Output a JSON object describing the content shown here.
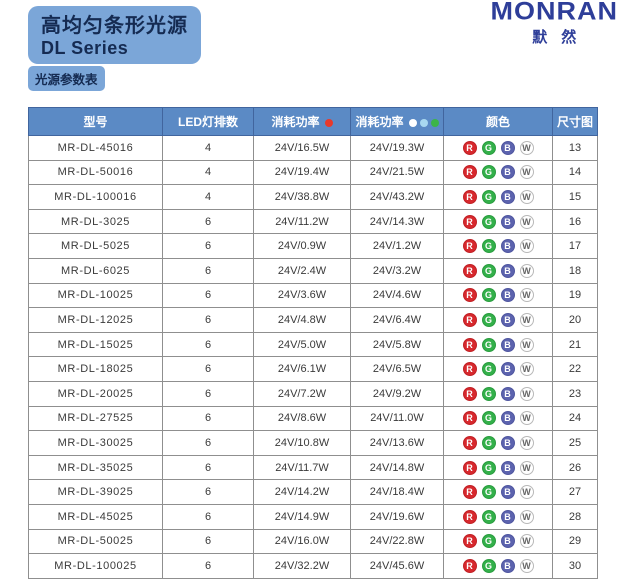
{
  "page": {
    "title_line1": "高均匀条形光源",
    "title_line2": "DL Series",
    "tag": "光源参数表",
    "logo_text": "MONRAN",
    "logo_sub": "默然"
  },
  "colors": {
    "accent_blue": "#7ba6d8",
    "header_blue": "#5b8ac5",
    "logo_navy": "#2e3e99",
    "title_text": "#152b52"
  },
  "table": {
    "columns": [
      {
        "label": "型号"
      },
      {
        "label": "LED灯排数"
      },
      {
        "label": "消耗功率",
        "dots": [
          "#e8392b"
        ]
      },
      {
        "label": "消耗功率",
        "dots": [
          "#ffffff",
          "#a8d8f0",
          "#3cb549"
        ]
      },
      {
        "label": "颜色"
      },
      {
        "label": "尺寸图"
      }
    ],
    "color_chips": {
      "R": {
        "bg": "#d7282d",
        "fg": "#ffffff",
        "border": "#c02025"
      },
      "G": {
        "bg": "#33b04a",
        "fg": "#ffffff",
        "border": "#2a9c3f"
      },
      "B": {
        "bg": "#5c63ae",
        "fg": "#ffffff",
        "border": "#4f56a0"
      },
      "W": {
        "bg": "#ffffff",
        "fg": "#666666",
        "border": "#b8b8b8"
      }
    },
    "rows": [
      {
        "model": "MR-DL-45016",
        "led_rows": "4",
        "power_typ": "24V/16.5W",
        "power_max": "24V/19.3W",
        "colors": [
          "R",
          "G",
          "B",
          "W"
        ],
        "diagram": "13"
      },
      {
        "model": "MR-DL-50016",
        "led_rows": "4",
        "power_typ": "24V/19.4W",
        "power_max": "24V/21.5W",
        "colors": [
          "R",
          "G",
          "B",
          "W"
        ],
        "diagram": "14"
      },
      {
        "model": "MR-DL-100016",
        "led_rows": "4",
        "power_typ": "24V/38.8W",
        "power_max": "24V/43.2W",
        "colors": [
          "R",
          "G",
          "B",
          "W"
        ],
        "diagram": "15"
      },
      {
        "model": "MR-DL-3025",
        "led_rows": "6",
        "power_typ": "24V/11.2W",
        "power_max": "24V/14.3W",
        "colors": [
          "R",
          "G",
          "B",
          "W"
        ],
        "diagram": "16"
      },
      {
        "model": "MR-DL-5025",
        "led_rows": "6",
        "power_typ": "24V/0.9W",
        "power_max": "24V/1.2W",
        "colors": [
          "R",
          "G",
          "B",
          "W"
        ],
        "diagram": "17"
      },
      {
        "model": "MR-DL-6025",
        "led_rows": "6",
        "power_typ": "24V/2.4W",
        "power_max": "24V/3.2W",
        "colors": [
          "R",
          "G",
          "B",
          "W"
        ],
        "diagram": "18"
      },
      {
        "model": "MR-DL-10025",
        "led_rows": "6",
        "power_typ": "24V/3.6W",
        "power_max": "24V/4.6W",
        "colors": [
          "R",
          "G",
          "B",
          "W"
        ],
        "diagram": "19"
      },
      {
        "model": "MR-DL-12025",
        "led_rows": "6",
        "power_typ": "24V/4.8W",
        "power_max": "24V/6.4W",
        "colors": [
          "R",
          "G",
          "B",
          "W"
        ],
        "diagram": "20"
      },
      {
        "model": "MR-DL-15025",
        "led_rows": "6",
        "power_typ": "24V/5.0W",
        "power_max": "24V/5.8W",
        "colors": [
          "R",
          "G",
          "B",
          "W"
        ],
        "diagram": "21"
      },
      {
        "model": "MR-DL-18025",
        "led_rows": "6",
        "power_typ": "24V/6.1W",
        "power_max": "24V/6.5W",
        "colors": [
          "R",
          "G",
          "B",
          "W"
        ],
        "diagram": "22"
      },
      {
        "model": "MR-DL-20025",
        "led_rows": "6",
        "power_typ": "24V/7.2W",
        "power_max": "24V/9.2W",
        "colors": [
          "R",
          "G",
          "B",
          "W"
        ],
        "diagram": "23"
      },
      {
        "model": "MR-DL-27525",
        "led_rows": "6",
        "power_typ": "24V/8.6W",
        "power_max": "24V/11.0W",
        "colors": [
          "R",
          "G",
          "B",
          "W"
        ],
        "diagram": "24"
      },
      {
        "model": "MR-DL-30025",
        "led_rows": "6",
        "power_typ": "24V/10.8W",
        "power_max": "24V/13.6W",
        "colors": [
          "R",
          "G",
          "B",
          "W"
        ],
        "diagram": "25"
      },
      {
        "model": "MR-DL-35025",
        "led_rows": "6",
        "power_typ": "24V/11.7W",
        "power_max": "24V/14.8W",
        "colors": [
          "R",
          "G",
          "B",
          "W"
        ],
        "diagram": "26"
      },
      {
        "model": "MR-DL-39025",
        "led_rows": "6",
        "power_typ": "24V/14.2W",
        "power_max": "24V/18.4W",
        "colors": [
          "R",
          "G",
          "B",
          "W"
        ],
        "diagram": "27"
      },
      {
        "model": "MR-DL-45025",
        "led_rows": "6",
        "power_typ": "24V/14.9W",
        "power_max": "24V/19.6W",
        "colors": [
          "R",
          "G",
          "B",
          "W"
        ],
        "diagram": "28"
      },
      {
        "model": "MR-DL-50025",
        "led_rows": "6",
        "power_typ": "24V/16.0W",
        "power_max": "24V/22.8W",
        "colors": [
          "R",
          "G",
          "B",
          "W"
        ],
        "diagram": "29"
      },
      {
        "model": "MR-DL-100025",
        "led_rows": "6",
        "power_typ": "24V/32.2W",
        "power_max": "24V/45.6W",
        "colors": [
          "R",
          "G",
          "B",
          "W"
        ],
        "diagram": "30"
      }
    ]
  }
}
